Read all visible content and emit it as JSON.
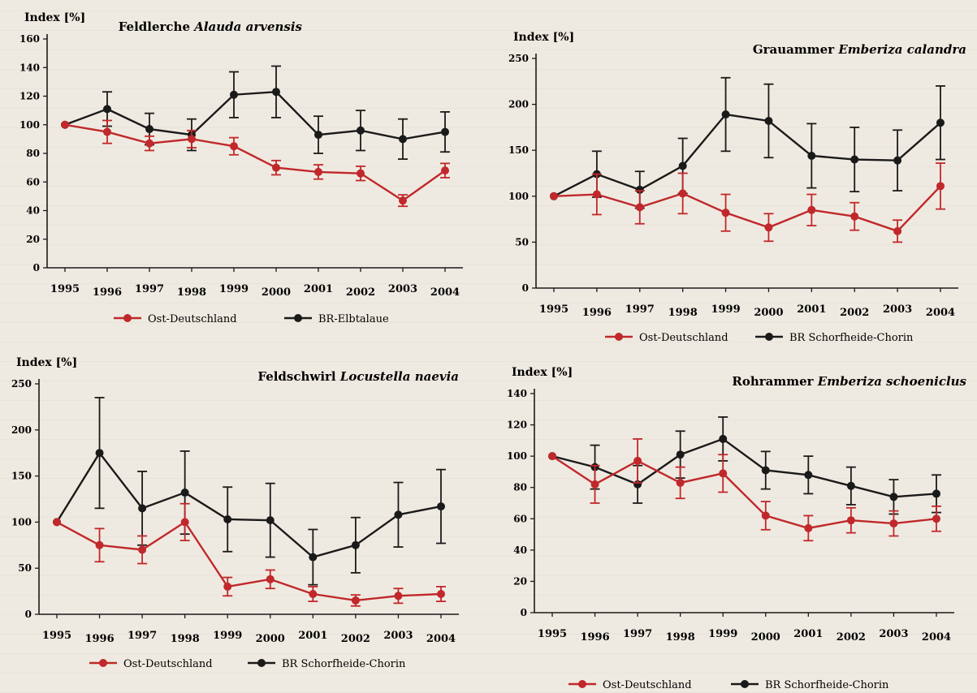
{
  "chart_data": [
    {
      "type": "line",
      "title_common": "Feldlerche",
      "title_latin": "Alauda arvensis",
      "ylabel": "Index [%]",
      "ylim": [
        0,
        160
      ],
      "yticks": [
        0,
        20,
        40,
        60,
        80,
        100,
        120,
        140,
        160
      ],
      "categories": [
        "1995",
        "1996",
        "1997",
        "1998",
        "1999",
        "2000",
        "2001",
        "2002",
        "2003",
        "2004"
      ],
      "series": [
        {
          "name": "Ost-Deutschland",
          "color": "#c0282b",
          "values": [
            100,
            95,
            87,
            90,
            85,
            70,
            67,
            66,
            47,
            68
          ],
          "err": [
            0,
            8,
            5,
            6,
            6,
            5,
            5,
            5,
            4,
            5
          ]
        },
        {
          "name": "BR-Elbtalaue",
          "color": "#1a1a1a",
          "values": [
            100,
            111,
            97,
            93,
            121,
            123,
            93,
            96,
            90,
            95
          ],
          "err": [
            0,
            12,
            11,
            11,
            16,
            18,
            13,
            14,
            14,
            14
          ]
        }
      ],
      "legend": [
        "Ost-Deutschland",
        "BR-Elbtalaue"
      ]
    },
    {
      "type": "line",
      "title_common": "Grauammer",
      "title_latin": "Emberiza calandra",
      "ylabel": "Index [%]",
      "ylim": [
        0,
        250
      ],
      "yticks": [
        0,
        50,
        100,
        150,
        200,
        250
      ],
      "categories": [
        "1995",
        "1996",
        "1997",
        "1998",
        "1999",
        "2000",
        "2001",
        "2002",
        "2003",
        "2004"
      ],
      "series": [
        {
          "name": "Ost-Deutschland",
          "color": "#c0282b",
          "values": [
            100,
            102,
            88,
            103,
            82,
            66,
            85,
            78,
            62,
            111
          ],
          "err": [
            0,
            22,
            18,
            22,
            20,
            15,
            17,
            15,
            12,
            25
          ]
        },
        {
          "name": "BR Schorfheide-Chorin",
          "color": "#1a1a1a",
          "values": [
            100,
            124,
            107,
            133,
            189,
            182,
            144,
            140,
            139,
            180
          ],
          "err": [
            0,
            25,
            20,
            30,
            40,
            40,
            35,
            35,
            33,
            40
          ]
        }
      ],
      "legend": [
        "Ost-Deutschland",
        "BR Schorfheide-Chorin"
      ]
    },
    {
      "type": "line",
      "title_common": "Feldschwirl",
      "title_latin": "Locustella naevia",
      "ylabel": "Index [%]",
      "ylim": [
        0,
        250
      ],
      "yticks": [
        0,
        50,
        100,
        150,
        200,
        250
      ],
      "categories": [
        "1995",
        "1996",
        "1997",
        "1998",
        "1999",
        "2000",
        "2001",
        "2002",
        "2003",
        "2004"
      ],
      "series": [
        {
          "name": "Ost-Deutschland",
          "color": "#c0282b",
          "values": [
            100,
            75,
            70,
            100,
            30,
            38,
            22,
            15,
            20,
            22
          ],
          "err": [
            0,
            18,
            15,
            20,
            10,
            10,
            8,
            6,
            8,
            8
          ]
        },
        {
          "name": "BR Schorfheide-Chorin",
          "color": "#1a1a1a",
          "values": [
            100,
            175,
            115,
            132,
            103,
            102,
            62,
            75,
            108,
            117
          ],
          "err": [
            0,
            60,
            40,
            45,
            35,
            40,
            30,
            30,
            35,
            40
          ]
        }
      ],
      "legend": [
        "Ost-Deutschland",
        "BR Schorfheide-Chorin"
      ]
    },
    {
      "type": "line",
      "title_common": "Rohrammer",
      "title_latin": "Emberiza schoeniclus",
      "ylabel": "Index [%]",
      "ylim": [
        0,
        140
      ],
      "yticks": [
        0,
        20,
        40,
        60,
        80,
        100,
        120,
        140
      ],
      "categories": [
        "1995",
        "1996",
        "1997",
        "1998",
        "1999",
        "2000",
        "2001",
        "2002",
        "2003",
        "2004"
      ],
      "series": [
        {
          "name": "Ost-Deutschland",
          "color": "#c0282b",
          "values": [
            100,
            82,
            97,
            83,
            89,
            62,
            54,
            59,
            57,
            60
          ],
          "err": [
            0,
            12,
            14,
            10,
            12,
            9,
            8,
            8,
            8,
            8
          ]
        },
        {
          "name": "BR Schorfheide-Chorin",
          "color": "#1a1a1a",
          "values": [
            100,
            93,
            82,
            101,
            111,
            91,
            88,
            81,
            74,
            76
          ],
          "err": [
            0,
            14,
            12,
            15,
            14,
            12,
            12,
            12,
            11,
            12
          ]
        }
      ],
      "legend": [
        "Ost-Deutschland",
        "BR Schorfheide-Chorin"
      ]
    }
  ]
}
